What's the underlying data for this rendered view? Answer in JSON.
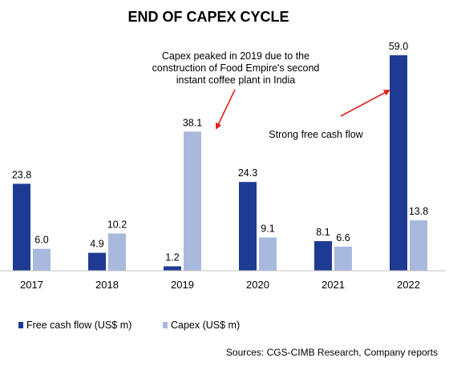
{
  "chart_data": {
    "type": "bar",
    "title": "END OF CAPEX CYCLE",
    "categories": [
      "2017",
      "2018",
      "2019",
      "2020",
      "2021",
      "2022"
    ],
    "series": [
      {
        "name": "Free cash flow (US$ m)",
        "color": "#1f3a93",
        "values": [
          23.8,
          4.9,
          1.2,
          24.3,
          8.1,
          59.0
        ]
      },
      {
        "name": "Capex (US$ m)",
        "color": "#a9b9de",
        "values": [
          6.0,
          10.2,
          38.1,
          9.1,
          6.6,
          13.8
        ]
      }
    ],
    "value_labels": [
      [
        "23.8",
        "4.9",
        "1.2",
        "24.3",
        "8.1",
        "59.0"
      ],
      [
        "6.0",
        "10.2",
        "38.1",
        "9.1",
        "6.6",
        "13.8"
      ]
    ],
    "ylim": [
      0,
      59
    ],
    "xlabel": "",
    "ylabel": "",
    "grid": false,
    "legend": "bottom-left",
    "annotations": [
      {
        "text": [
          "Capex peaked in 2019 due to the",
          "construction of Food Empire's second",
          "instant coffee plant in India"
        ]
      },
      {
        "text": [
          "Strong free cash flow"
        ]
      }
    ],
    "arrow_color": "#e0201c",
    "source": "Sources: CGS-CIMB Research, Company reports"
  }
}
